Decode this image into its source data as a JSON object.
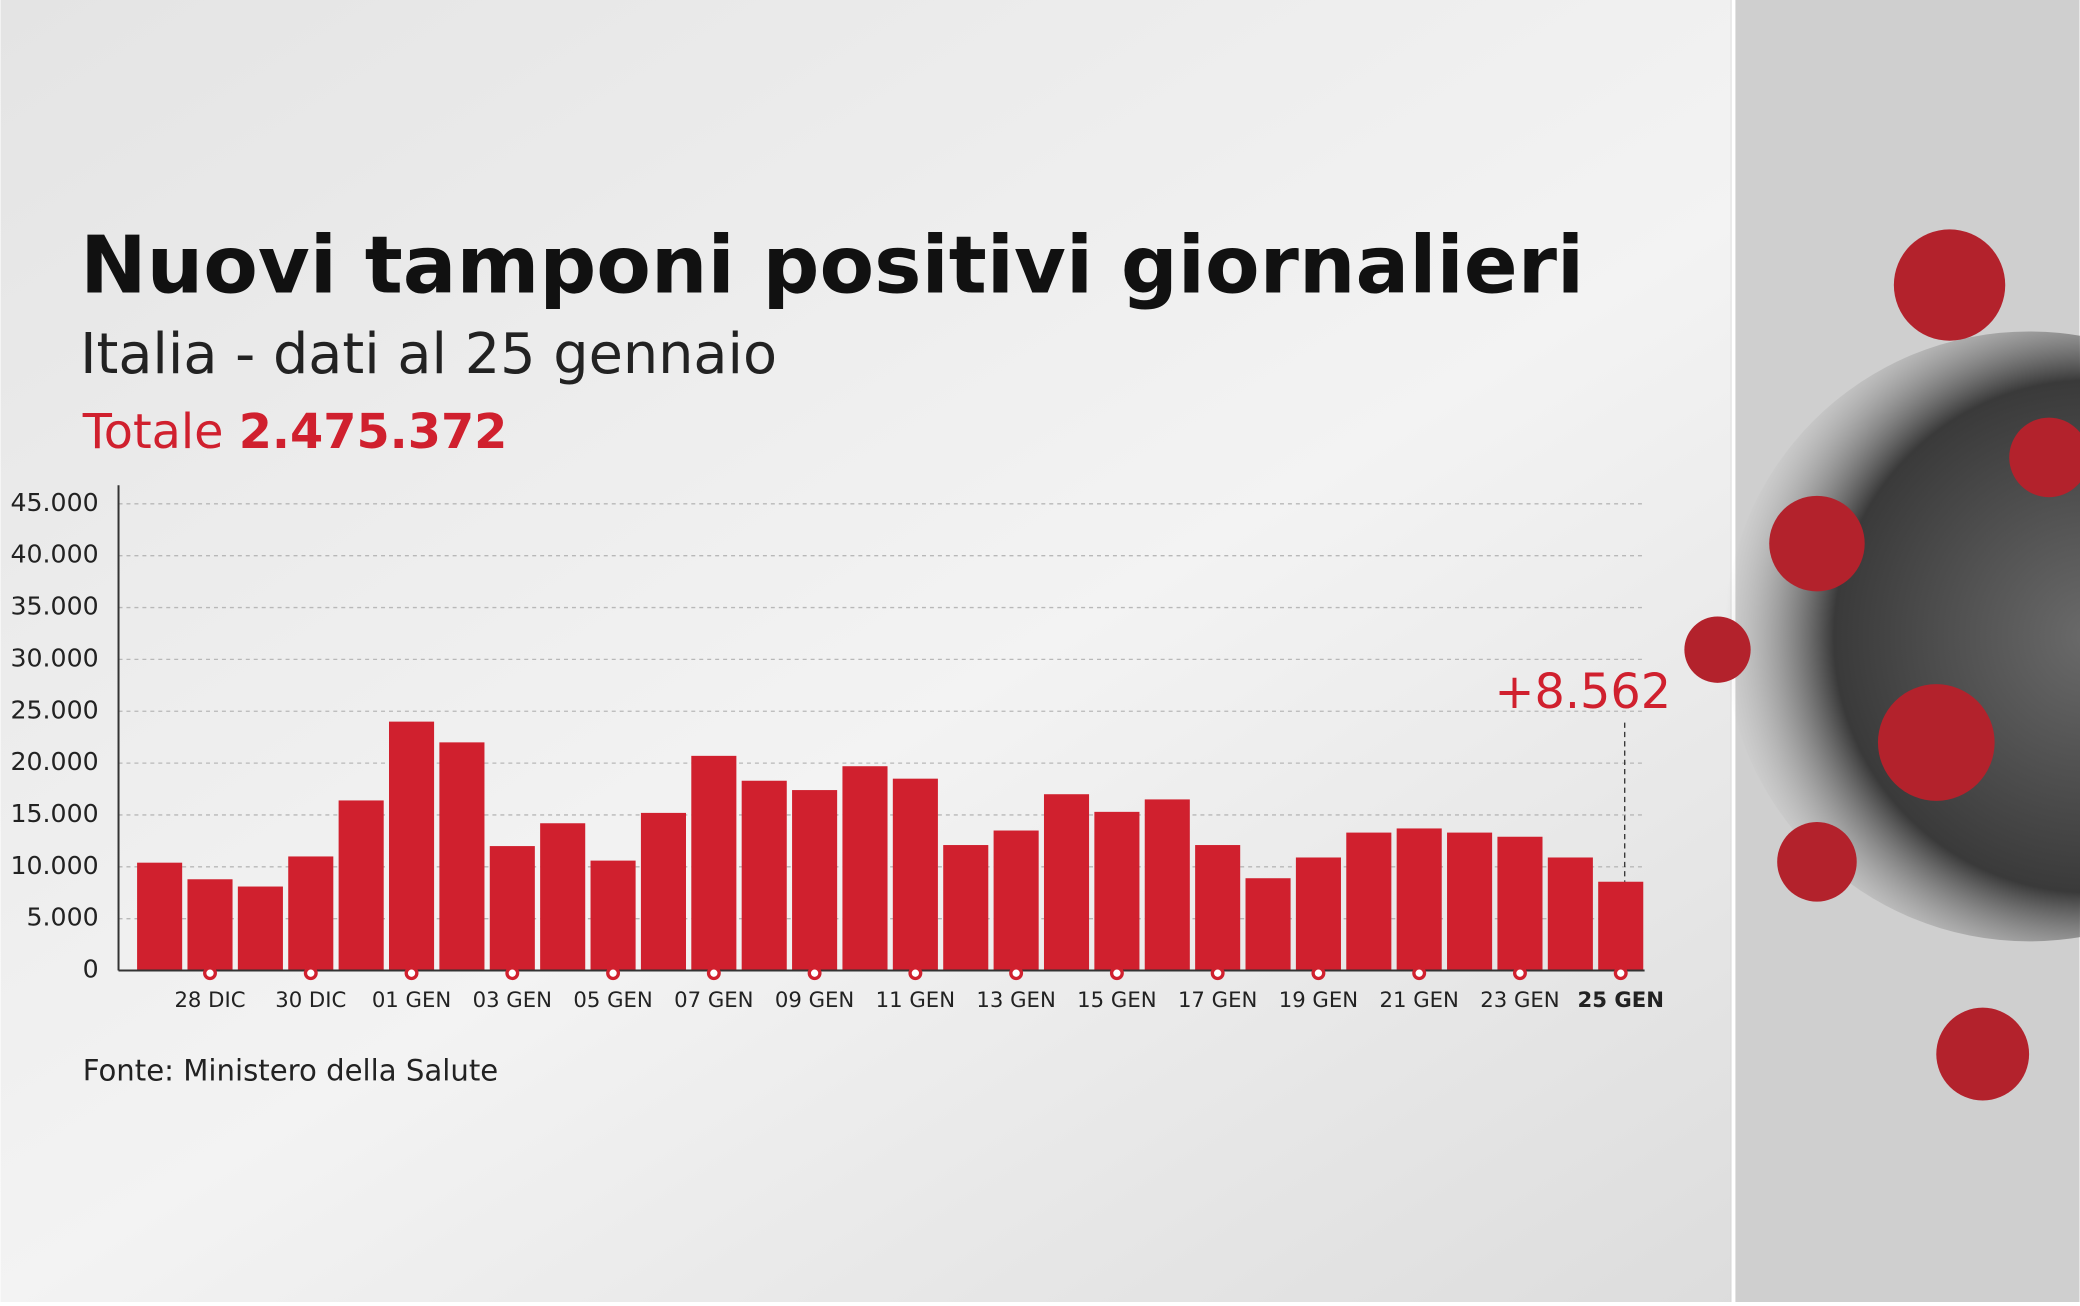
{
  "chart_data": {
    "type": "bar",
    "title": "Nuovi tamponi positivi giornalieri",
    "subtitle": "Italia - dati al 25 gennaio",
    "total_label": "Totale",
    "total_value": "2.475.372",
    "source": "Fonte: Ministero della Salute",
    "categories": [
      null,
      "28 DIC",
      null,
      "30 DIC",
      null,
      "01 GEN",
      null,
      "03 GEN",
      null,
      "05 GEN",
      null,
      "07 GEN",
      null,
      "09 GEN",
      null,
      "11 GEN",
      null,
      "13 GEN",
      null,
      "15 GEN",
      null,
      "17 GEN",
      null,
      "19 GEN",
      null,
      "21 GEN",
      null,
      "23 GEN",
      null,
      "25 GEN"
    ],
    "values": [
      10400,
      8800,
      8100,
      11000,
      16400,
      24000,
      22000,
      12000,
      14200,
      10600,
      15200,
      20700,
      18300,
      17400,
      19700,
      18500,
      12100,
      13500,
      17000,
      15300,
      16500,
      12100,
      8900,
      10900,
      13300,
      13700,
      13300,
      12900,
      10900,
      8562
    ],
    "value_labels": [
      null,
      null,
      null,
      null,
      null,
      null,
      null,
      null,
      null,
      null,
      null,
      null,
      null,
      null,
      null,
      null,
      null,
      null,
      null,
      null,
      null,
      null,
      null,
      null,
      null,
      null,
      null,
      null,
      null,
      "+8.562"
    ],
    "color": "#d0202e",
    "ylim": [
      0,
      45000
    ],
    "yticks": [
      0,
      {
        "value": 5000,
        "label": "5.000"
      },
      {
        "value": 10000,
        "label": "10.000"
      },
      {
        "value": 15000,
        "label": "15.000"
      },
      {
        "value": 20000,
        "label": "20.000"
      },
      {
        "value": 25000,
        "label": "25.000"
      },
      {
        "value": 30000,
        "label": "30.000"
      },
      {
        "value": 35000,
        "label": "35.000"
      },
      {
        "value": 40000,
        "label": "40.000"
      },
      {
        "value": 45000,
        "label": "45.000"
      }
    ],
    "grid": true
  }
}
